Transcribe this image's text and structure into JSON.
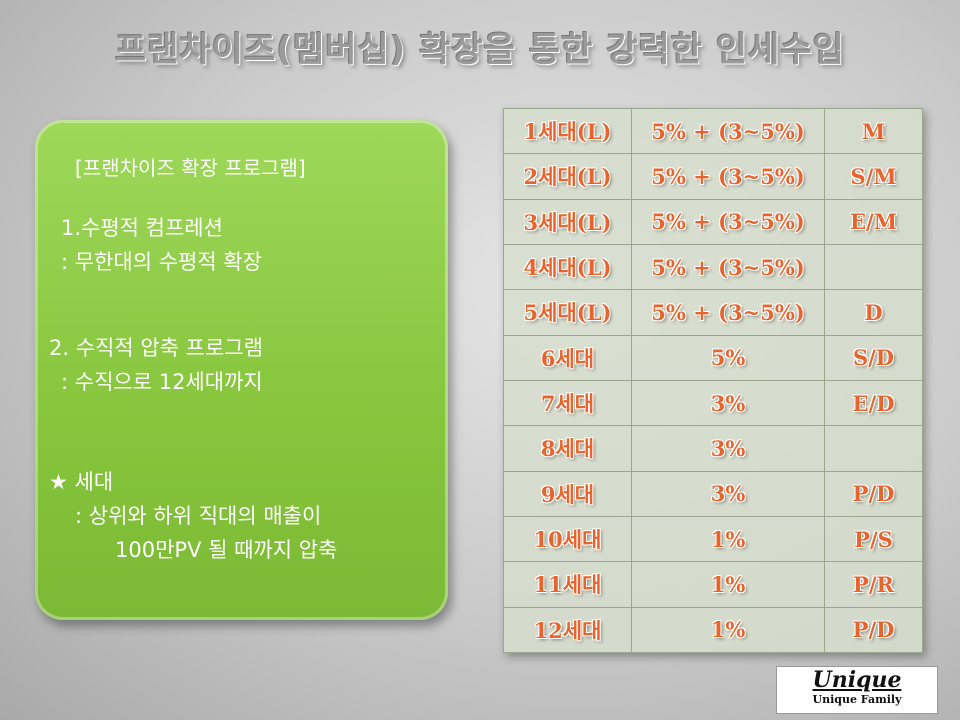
{
  "header": {
    "title": "프랜차이즈(멤버십) 확장을 통한  강력한 인세수입"
  },
  "program_box": {
    "heading": "[프랜차이즈 확장 프로그램]",
    "items": [
      {
        "title": "1.수평적 컴프레션",
        "detail": ": 무한대의 수평적 확장"
      },
      {
        "title": "2. 수직적 압축 프로그램",
        "detail": ": 수직으로 12세대까지"
      },
      {
        "title": "★ 세대",
        "detail": ": 상위와 하위 직대의 매출이",
        "detail2": "100만PV 될 때까지 압축"
      }
    ]
  },
  "table": {
    "rows": [
      [
        "1세대(L)",
        "5% + (3~5%)",
        "M"
      ],
      [
        "2세대(L)",
        "5% + (3~5%)",
        "S/M"
      ],
      [
        "3세대(L)",
        "5% + (3~5%)",
        "E/M"
      ],
      [
        "4세대(L)",
        "5% + (3~5%)",
        null
      ],
      [
        "5세대(L)",
        "5% + (3~5%)",
        "D"
      ],
      [
        "6세대",
        "5%",
        "S/D"
      ],
      [
        "7세대",
        "3%",
        "E/D"
      ],
      [
        "8세대",
        "3%",
        null
      ],
      [
        "9세대",
        "3%",
        "P/D"
      ],
      [
        "10세대",
        "1%",
        "P/S"
      ],
      [
        "11세대",
        "1%",
        "P/R"
      ],
      [
        "12세대",
        "1%",
        "P/D"
      ]
    ]
  },
  "logo": {
    "name": "Unique",
    "tagline": "Unique Family"
  }
}
